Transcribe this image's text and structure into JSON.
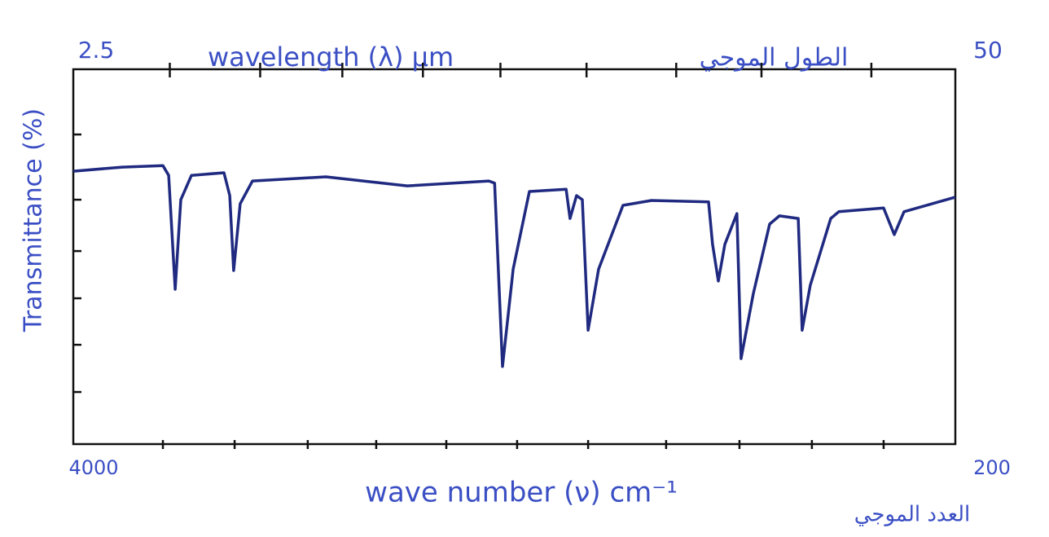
{
  "chart_data": {
    "type": "line",
    "ylabel": "Transmittance (%)",
    "xlabel": "wave number (ν) cm⁻¹",
    "xlabel_ar": "العدد الموجي",
    "x2label": "wavelength (λ) μm",
    "x2label_ar": "الطول الموجي",
    "xlim": [
      4000,
      200
    ],
    "xticks": [
      4000,
      200
    ],
    "xminor_ticks": [
      3614,
      3305,
      2990,
      2695,
      2393,
      2088,
      1782,
      1446,
      1130,
      818,
      509
    ],
    "x2lim": [
      2.5,
      50
    ],
    "x2ticks": [
      2.5,
      50
    ],
    "x2minor_ticks": [
      2.79,
      3.13,
      3.52,
      4.01,
      4.63,
      5.59,
      7.13,
      9.66,
      17.8
    ],
    "ylim": [
      0,
      100
    ],
    "yminor_ticks": [
      13.9,
      26.5,
      38.9,
      51.5,
      65.2,
      82.6
    ],
    "x": [
      4000,
      3789,
      3614,
      3589,
      3561,
      3537,
      3491,
      3351,
      3326,
      3309,
      3281,
      3228,
      2912,
      2561,
      2210,
      2185,
      2151,
      2105,
      2035,
      1877,
      1860,
      1832,
      1807,
      1782,
      1737,
      1632,
      1509,
      1263,
      1246,
      1221,
      1193,
      1141,
      1123,
      1070,
      1000,
      958,
      877,
      860,
      825,
      737,
      702,
      509,
      463,
      421,
      200
    ],
    "series": [
      {
        "color": "#1f2a80",
        "values": [
          72.8,
          73.9,
          74.3,
          71.7,
          41.3,
          65.2,
          71.7,
          72.4,
          66.3,
          46.3,
          64.1,
          70.2,
          71.3,
          68.9,
          70.2,
          69.6,
          20.7,
          46.7,
          67.4,
          68.0,
          60.2,
          66.3,
          65.2,
          30.4,
          46.7,
          63.7,
          65.0,
          64.6,
          53.3,
          43.5,
          53.3,
          61.5,
          22.8,
          40.2,
          58.7,
          60.9,
          60.2,
          30.4,
          42.4,
          60.2,
          62.0,
          63.0,
          55.9,
          62.0,
          65.9
        ]
      }
    ]
  }
}
